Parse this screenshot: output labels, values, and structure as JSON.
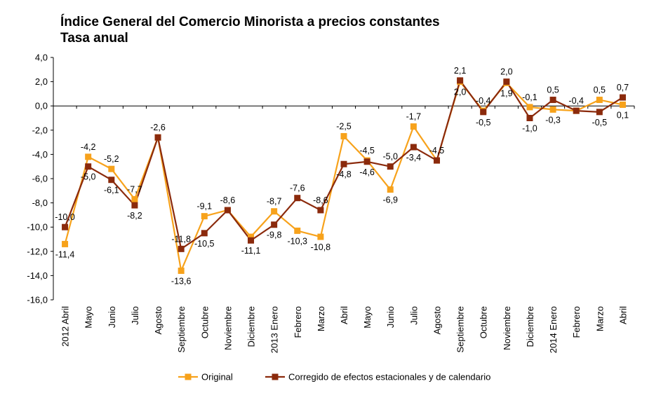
{
  "chart_data": {
    "type": "line",
    "title": "Índice General del Comercio Minorista a precios constantes",
    "subtitle": "Tasa anual",
    "categories": [
      "2012 Abril",
      "Mayo",
      "Junio",
      "Julio",
      "Agosto",
      "Septiembre",
      "Octubre",
      "Noviembre",
      "Diciembre",
      "2013 Enero",
      "Febrero",
      "Marzo",
      "Abril",
      "Mayo",
      "Junio",
      "Julio",
      "Agosto",
      "Septiembre",
      "Octubre",
      "Noviembre",
      "Diciembre",
      "2014 Enero",
      "Febrero",
      "Marzo",
      "Abril"
    ],
    "series": [
      {
        "name": "Original",
        "color": "#f7a21b",
        "marker": "square",
        "values": [
          -11.4,
          -4.2,
          -5.2,
          -7.7,
          -2.6,
          -13.6,
          -9.1,
          -8.6,
          -10.8,
          -8.7,
          -10.3,
          -10.8,
          -2.5,
          -4.5,
          -6.9,
          -1.7,
          -4.5,
          2.0,
          -0.4,
          1.9,
          -0.1,
          -0.3,
          -0.4,
          0.5,
          0.1
        ],
        "labels": [
          "-11,4",
          "-4,2",
          "-5,2",
          "-7,7",
          "",
          "-13,6",
          "-9,1",
          "",
          "",
          "-8,7",
          "-10,3",
          "-10,8",
          "-2,5",
          "-4,5",
          "-6,9",
          "-1,7",
          "",
          "2,0",
          "-0,4",
          "1,9",
          "-0,1",
          "-0,3",
          "",
          "0,5",
          "0,1"
        ]
      },
      {
        "name": "Corregido de efectos estacionales y de calendario",
        "color": "#8b2a0c",
        "marker": "square",
        "values": [
          -10.0,
          -5.0,
          -6.1,
          -8.2,
          -2.6,
          -11.8,
          -10.5,
          -8.6,
          -11.1,
          -9.8,
          -7.6,
          -8.6,
          -4.8,
          -4.6,
          -5.0,
          -3.4,
          -4.5,
          2.1,
          -0.5,
          2.0,
          -1.0,
          0.5,
          -0.4,
          -0.5,
          0.7
        ],
        "labels": [
          "-10,0",
          "-5,0",
          "-6,1",
          "-8,2",
          "-2,6",
          "-11,8",
          "-10,5",
          "-8,6",
          "-11,1",
          "-9,8",
          "-7,6",
          "-8,6",
          "-4,8",
          "-4,6",
          "-5,0",
          "-3,4",
          "-4,5",
          "2,1",
          "-0,5",
          "2,0",
          "-1,0",
          "0,5",
          "-0,4",
          "-0,5",
          "0,7"
        ]
      }
    ],
    "ylim": [
      -16,
      4
    ],
    "yticks": [
      4,
      2,
      0,
      -2,
      -4,
      -6,
      -8,
      -10,
      -12,
      -14,
      -16
    ],
    "ytick_labels": [
      "4,0",
      "2,0",
      "0,0",
      "-2,0",
      "-4,0",
      "-6,0",
      "-8,0",
      "-10,0",
      "-12,0",
      "-14,0",
      "-16,0"
    ],
    "grid": false,
    "legend": "bottom"
  }
}
